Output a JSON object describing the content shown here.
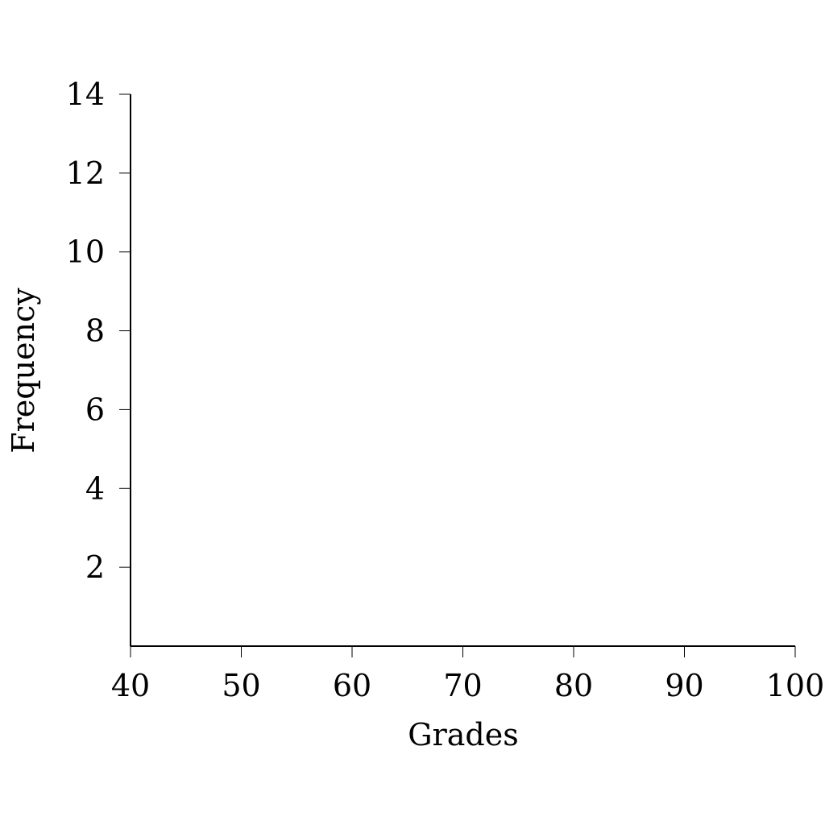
{
  "chart_data": {
    "type": "bar",
    "title": "",
    "xlabel": "Grades",
    "ylabel": "Frequency",
    "xlim": [
      40,
      100
    ],
    "ylim": [
      0,
      14
    ],
    "x_ticks": [
      40,
      50,
      60,
      70,
      80,
      90,
      100
    ],
    "y_ticks": [
      2,
      4,
      6,
      8,
      10,
      12,
      14
    ],
    "x_tick_labels": [
      "40",
      "50",
      "60",
      "70",
      "80",
      "90",
      "100"
    ],
    "y_tick_labels": [
      "2",
      "4",
      "6",
      "8",
      "10",
      "12",
      "14"
    ],
    "series": [],
    "grid": false,
    "legend": "none",
    "colors": {
      "axis": "#000000",
      "background": "#ffffff"
    }
  }
}
